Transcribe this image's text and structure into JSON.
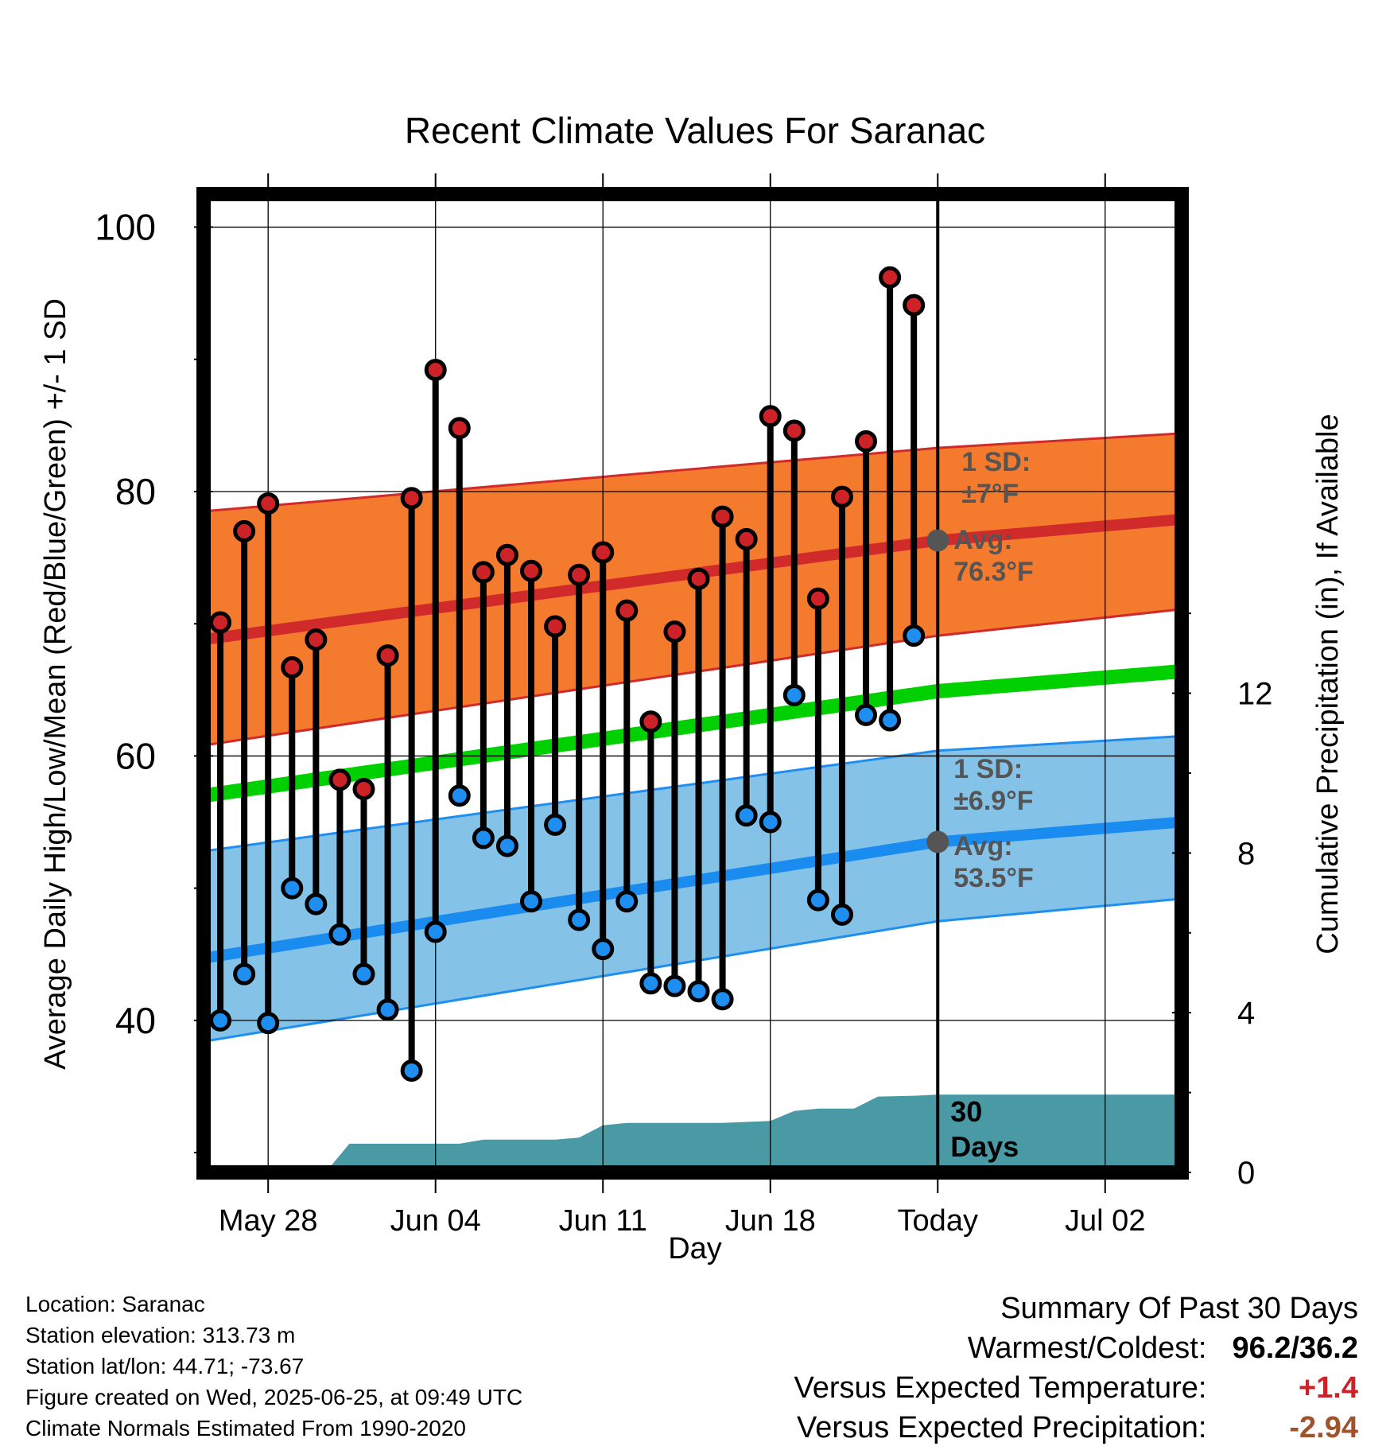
{
  "chart_data": {
    "type": "line",
    "title": "Recent Climate Values For Saranac",
    "xlabel": "Day",
    "ylabel": "Average Daily High/Low/Mean (Red/Blue/Green) +/- 1 SD",
    "y2label": "Cumulative Precipitation (in), If Available",
    "x_ticks": [
      "May 28",
      "Jun 04",
      "Jun 11",
      "Jun 18",
      "Today",
      "Jul 02"
    ],
    "x_tick_days": [
      3,
      10,
      17,
      24,
      31,
      38
    ],
    "x_range_days": [
      0.3,
      41.2
    ],
    "y_ticks": [
      40,
      60,
      80,
      100
    ],
    "ylim": [
      28.5,
      102.5
    ],
    "y2_ticks": [
      0,
      4,
      8,
      12
    ],
    "y2lim": [
      0,
      24.5
    ],
    "today_day": 31,
    "today_marker_label": [
      "30",
      "Days"
    ],
    "normals": {
      "days": [
        0.3,
        31,
        41.2
      ],
      "high_mean": [
        68.8,
        76.3,
        77.9
      ],
      "high_upper": [
        78.5,
        83.3,
        84.4
      ],
      "high_lower": [
        60.8,
        69.1,
        71.1
      ],
      "mean": [
        57.0,
        64.9,
        66.4
      ],
      "low_mean": [
        44.7,
        53.5,
        55.0
      ],
      "low_upper": [
        52.8,
        60.4,
        61.5
      ],
      "low_lower": [
        38.4,
        47.5,
        49.2
      ]
    },
    "series": [
      {
        "name": "High",
        "color": "#cc2228",
        "days": [
          1,
          2,
          3,
          4,
          5,
          6,
          7,
          8,
          9,
          10,
          11,
          12,
          13,
          14,
          15,
          16,
          17,
          18,
          19,
          20,
          21,
          22,
          23,
          24,
          25,
          26,
          27,
          28,
          29,
          30
        ],
        "values": [
          70.1,
          77.0,
          79.1,
          66.7,
          68.8,
          58.2,
          57.5,
          67.6,
          79.5,
          89.2,
          84.8,
          73.9,
          75.2,
          74.0,
          69.8,
          73.7,
          75.4,
          71.0,
          62.6,
          69.4,
          73.4,
          78.1,
          76.4,
          85.7,
          84.6,
          71.9,
          79.6,
          83.8,
          96.2,
          94.1
        ]
      },
      {
        "name": "Low",
        "color": "#1f8ef1",
        "days": [
          1,
          2,
          3,
          4,
          5,
          6,
          7,
          8,
          9,
          10,
          11,
          12,
          13,
          14,
          15,
          16,
          17,
          18,
          19,
          20,
          21,
          22,
          23,
          24,
          25,
          26,
          27,
          28,
          29,
          30
        ],
        "values": [
          40.0,
          43.5,
          39.8,
          50.0,
          48.8,
          46.5,
          43.5,
          40.8,
          36.2,
          46.7,
          57.0,
          53.8,
          53.2,
          49.0,
          54.8,
          47.6,
          45.4,
          49.0,
          42.8,
          42.6,
          42.2,
          41.6,
          55.5,
          55.0,
          64.6,
          49.1,
          48.0,
          63.1,
          62.7,
          69.1
        ]
      }
    ],
    "precip_cumulative": {
      "color": "#4a9aa5",
      "days": [
        0.3,
        5.4,
        6.4,
        11,
        12,
        15,
        16,
        17,
        18,
        22,
        24,
        25,
        26,
        27.5,
        28.5,
        30,
        31,
        41.2
      ],
      "values": [
        0,
        0,
        0.72,
        0.72,
        0.82,
        0.82,
        0.87,
        1.18,
        1.24,
        1.24,
        1.29,
        1.54,
        1.6,
        1.6,
        1.9,
        1.92,
        1.95,
        1.95
      ]
    },
    "annotations": {
      "high_sd": [
        "1 SD:",
        "±7°F"
      ],
      "high_avg": [
        "Avg:",
        "76.3°F"
      ],
      "low_sd": [
        "1 SD:",
        "±6.9°F"
      ],
      "low_avg": [
        "Avg:",
        "53.5°F"
      ]
    }
  },
  "footer": {
    "location": "Location: Saranac",
    "elevation": "Station elevation: 313.73 m",
    "latlon": "Station lat/lon: 44.71; -73.67",
    "created": "Figure created on Wed, 2025-06-25, at 09:49 UTC",
    "normals": "Climate Normals Estimated From 1990-2020"
  },
  "summary": {
    "title": "Summary Of Past 30 Days",
    "warm_label": "Warmest/Coldest:",
    "warm_value": "96.2/36.2",
    "temp_label": "Versus Expected Temperature:",
    "temp_value": "+1.4",
    "temp_color": "#cc2228",
    "precip_label": "Versus Expected Precipitation:",
    "precip_value": "-2.94",
    "precip_color": "#a0522d"
  }
}
